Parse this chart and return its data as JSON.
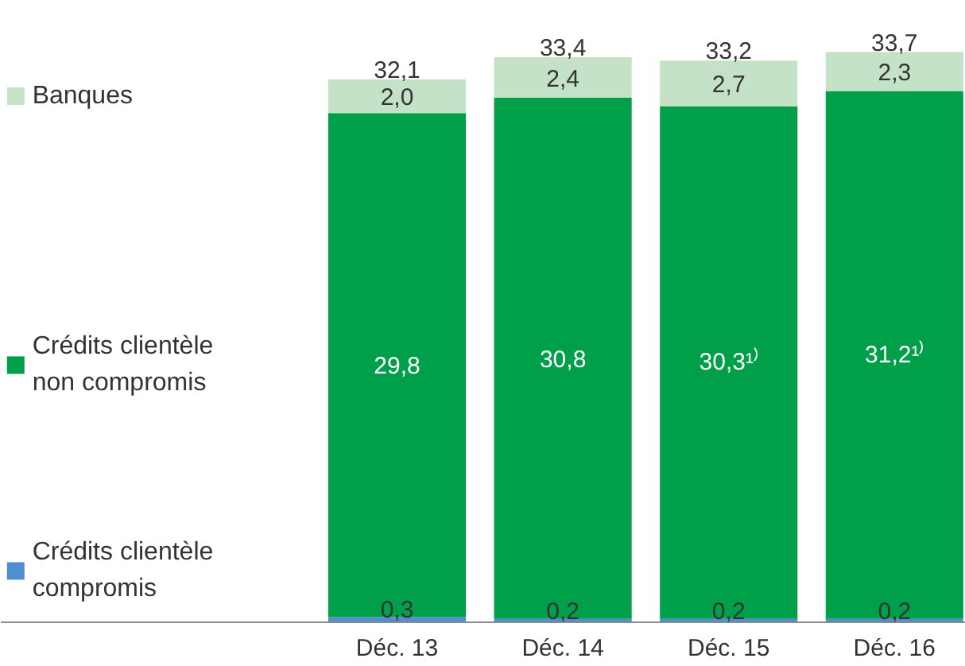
{
  "chart_data": {
    "type": "bar",
    "stacked": true,
    "categories": [
      "Déc. 13",
      "Déc. 14",
      "Déc. 15",
      "Déc. 16"
    ],
    "legend": "left",
    "series": [
      {
        "name": "Crédits clientèle compromis",
        "color": "#4f8fcf",
        "values": [
          0.3,
          0.2,
          0.2,
          0.2
        ],
        "value_labels": [
          "0,3",
          "0,2",
          "0,2",
          "0,2"
        ]
      },
      {
        "name": "Crédits clientèle non compromis",
        "color": "#00a04b",
        "values": [
          29.8,
          30.8,
          30.3,
          31.2
        ],
        "value_labels": [
          "29,8",
          "30,8",
          "30,3¹⁾",
          "31,2¹⁾"
        ]
      },
      {
        "name": "Banques",
        "color": "#c3e2c7",
        "values": [
          2.0,
          2.4,
          2.7,
          2.3
        ],
        "value_labels": [
          "2,0",
          "2,4",
          "2,7",
          "2,3"
        ]
      }
    ],
    "totals": [
      "32,1",
      "33,4",
      "33,2",
      "33,7"
    ]
  }
}
